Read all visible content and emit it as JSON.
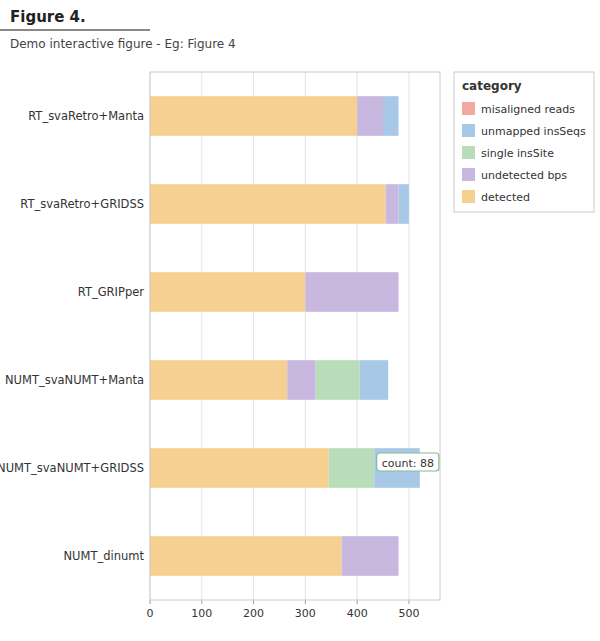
{
  "chart_data": {
    "type": "bar",
    "orientation": "horizontal",
    "stacked": true,
    "title": "Figure 4.",
    "subtitle": "Demo interactive figure - Eg: Figure 4",
    "categories": [
      "RT_svaRetro+Manta",
      "RT_svaRetro+GRIDSS",
      "RT_GRIPper",
      "NUMT_svaNUMT+Manta",
      "NUMT_svaNUMT+GRIDSS",
      "NUMT_dinumt"
    ],
    "series": [
      {
        "name": "detected",
        "color": "#f5d090",
        "values": [
          400,
          455,
          300,
          265,
          345,
          370
        ]
      },
      {
        "name": "undetected bps",
        "color": "#c8b8e0",
        "values": [
          50,
          25,
          180,
          55,
          0,
          110
        ]
      },
      {
        "name": "single insSite",
        "color": "#b8ddb8",
        "values": [
          0,
          0,
          0,
          85,
          88,
          0
        ]
      },
      {
        "name": "unmapped insSeqs",
        "color": "#a8c8e8",
        "values": [
          30,
          20,
          0,
          55,
          88,
          0
        ]
      },
      {
        "name": "misaligned reads",
        "color": "#f4a8a0",
        "values": [
          0,
          0,
          0,
          0,
          0,
          0
        ]
      }
    ],
    "legend": "upper right",
    "legend_title": "category",
    "xlim": [
      0,
      560
    ],
    "xticks": [
      0,
      100,
      200,
      300,
      400,
      500
    ],
    "grid": true,
    "annotations": [
      {
        "text": "count: 88",
        "x": 430,
        "y": "NUMT_svaNUMT+GRIDSS"
      }
    ]
  }
}
